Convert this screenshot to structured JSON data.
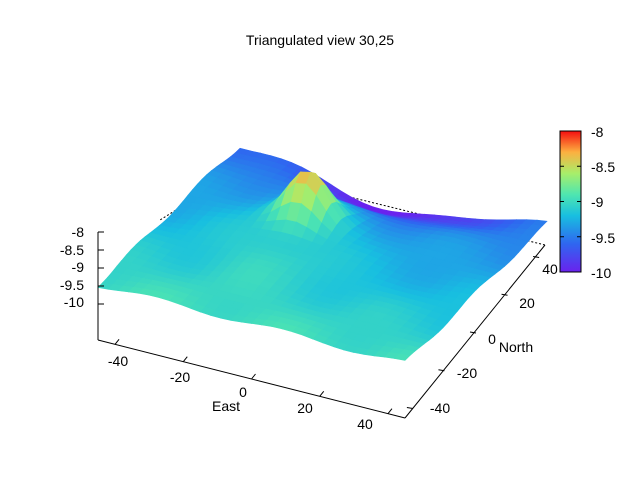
{
  "chart_data": {
    "type": "surface3d",
    "title": "Triangulated view 30,25",
    "xlabel": "East",
    "ylabel": "North",
    "zlabel": "",
    "view": {
      "rot_x": 30,
      "rot_z": 25
    },
    "x_ticks": [
      "-40",
      "-20",
      "0",
      "20",
      "40"
    ],
    "y_ticks": [
      "-40",
      "-20",
      "0",
      "20",
      "40"
    ],
    "z_ticks": [
      "-8",
      "-8.5",
      "-9",
      "-9.5",
      "-10"
    ],
    "colorbar": {
      "ticks": [
        "-8",
        "-8.5",
        "-9",
        "-9.5",
        "-10"
      ],
      "range": [
        -10,
        -8
      ],
      "colormap": "rainbow"
    },
    "surface": {
      "x_range": [
        -45,
        45
      ],
      "y_range": [
        -45,
        45
      ],
      "z_range": [
        -10,
        -8
      ],
      "peak": {
        "x": -10,
        "y": 12,
        "z": -8.4
      },
      "deep_region": {
        "x": 0,
        "y": 45,
        "z": -9.95
      }
    }
  }
}
